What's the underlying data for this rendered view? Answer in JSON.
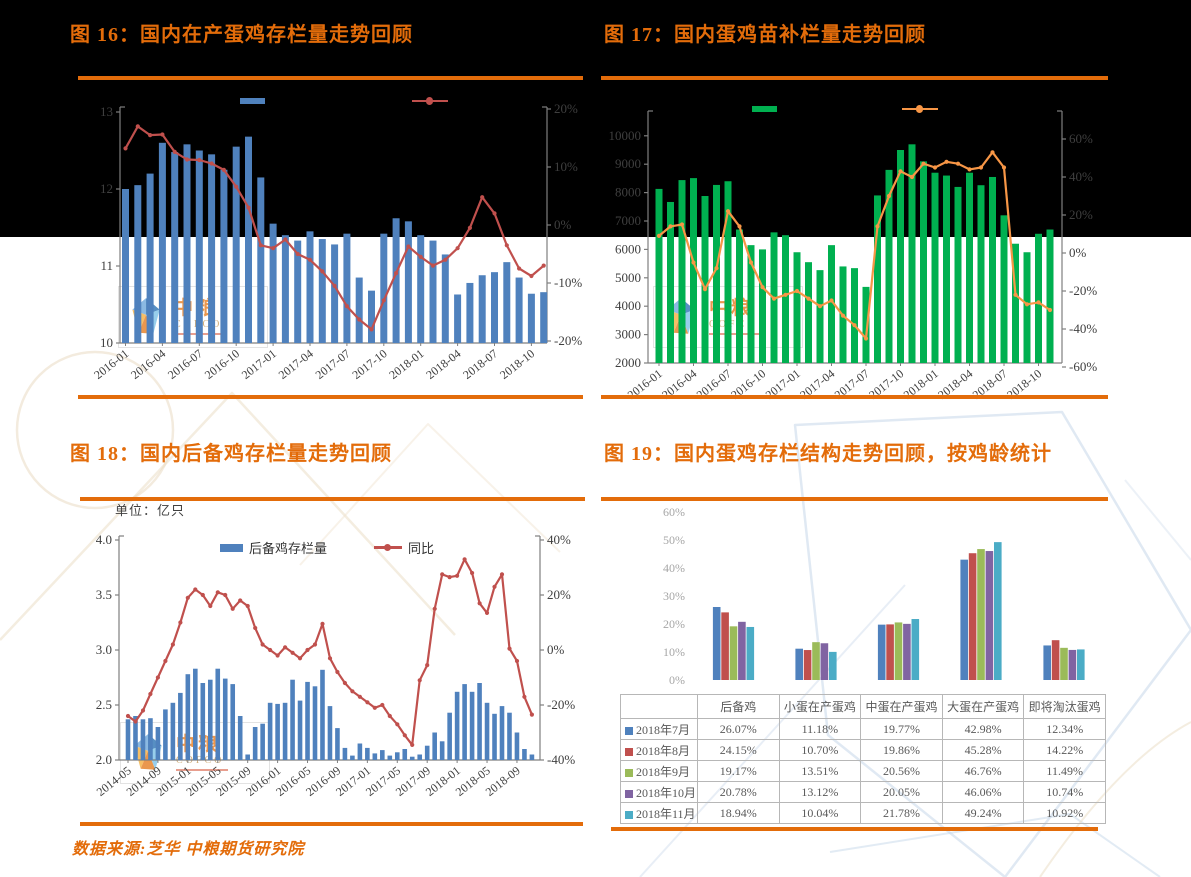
{
  "page": {
    "footer": "数据来源:芝华 中粮期货研究院",
    "accent_orange": "#E36C0A",
    "watermark": {
      "brand_cn": "中粮",
      "brand_en": "COFCO"
    }
  },
  "chart_data": [
    {
      "id": "fig16",
      "type": "bar+line",
      "title": "图 16：国内在产蛋鸡存栏量走势回顾",
      "bar_color": "#4F81BD",
      "line_color": "#C0504D",
      "x_labels": [
        "2016-01",
        "2016-04",
        "2016-07",
        "2016-10",
        "2017-01",
        "2017-04",
        "2017-07",
        "2017-10",
        "2018-01",
        "2018-04",
        "2018-07",
        "2018-10"
      ],
      "left_axis": {
        "ticks": [
          13,
          12,
          11,
          10
        ],
        "labels": [
          "13",
          "12",
          "11",
          "10"
        ]
      },
      "right_axis": {
        "ticks": [
          20,
          10,
          0,
          -10,
          -20
        ],
        "labels": [
          "20%",
          "10%",
          "0%",
          "-10%",
          "-20%"
        ]
      },
      "bars": [
        12.0,
        12.05,
        12.2,
        12.6,
        12.48,
        12.58,
        12.5,
        12.45,
        12.25,
        12.55,
        12.68,
        12.15,
        11.55,
        11.4,
        11.33,
        11.45,
        11.35,
        11.28,
        11.42,
        10.85,
        10.68,
        11.42,
        11.62,
        11.58,
        11.4,
        11.33,
        11.15,
        10.63,
        10.78,
        10.88,
        10.92,
        11.05,
        10.85,
        10.64,
        10.66
      ],
      "line": [
        13.2,
        17.0,
        15.5,
        15.6,
        12.6,
        11.3,
        11.2,
        10.6,
        9.5,
        6.6,
        3.0,
        -3.5,
        -4.0,
        -2.5,
        -5.0,
        -6.0,
        -8.0,
        -10.5,
        -14.0,
        -16.3,
        -18.0,
        -13.0,
        -8.3,
        -3.7,
        -5.5,
        -7.0,
        -6.0,
        -4.0,
        -0.5,
        4.8,
        2.0,
        -3.5,
        -7.5,
        -8.8,
        -7.0
      ]
    },
    {
      "id": "fig17",
      "type": "bar+line",
      "title": "图 17：国内蛋鸡苗补栏量走势回顾",
      "bar_color": "#00B050",
      "line_color": "#F79646",
      "x_labels": [
        "2016-01",
        "2016-04",
        "2016-07",
        "2016-10",
        "2017-01",
        "2017-04",
        "2017-07",
        "2017-10",
        "2018-01",
        "2018-04",
        "2018-07",
        "2018-10"
      ],
      "left_axis": {
        "ticks": [
          10000,
          9000,
          8000,
          7000,
          6000,
          5000,
          4000,
          3000,
          2000
        ],
        "labels": [
          "10000",
          "9000",
          "8000",
          "7000",
          "6000",
          "5000",
          "4000",
          "3000",
          "2000"
        ]
      },
      "right_axis": {
        "ticks": [
          60,
          40,
          20,
          0,
          -20,
          -40,
          -60
        ],
        "labels": [
          "60%",
          "40%",
          "20%",
          "0%",
          "-20%",
          "-40%",
          "-60%"
        ]
      },
      "bars": [
        8130,
        7670,
        8440,
        8510,
        7880,
        8270,
        8400,
        6700,
        6150,
        6000,
        6600,
        6500,
        5900,
        5550,
        5270,
        6150,
        5400,
        5340,
        4680,
        7900,
        8800,
        9500,
        9700,
        9100,
        8700,
        8600,
        8200,
        8700,
        8260,
        8550,
        7200,
        6200,
        5900,
        6550,
        6700
      ],
      "line": [
        9,
        14,
        15,
        -5,
        -19,
        -8,
        22,
        14,
        -5,
        -18,
        -24,
        -22,
        -20,
        -24,
        -28,
        -25,
        -33,
        -38,
        -45,
        14,
        30,
        43,
        40,
        47,
        45,
        48,
        47,
        44,
        45,
        53,
        45,
        -22,
        -27,
        -26,
        -30
      ]
    },
    {
      "id": "fig18",
      "type": "bar+line",
      "title": "图 18：国内后备鸡存栏量走势回顾",
      "unit": "单位：亿只",
      "bar_color": "#4F81BD",
      "line_color": "#C0504D",
      "legend": [
        {
          "label": "后备鸡存栏量",
          "color": "#4F81BD",
          "marker": "bar"
        },
        {
          "label": "同比",
          "color": "#C0504D",
          "marker": "line"
        }
      ],
      "x_labels": [
        "2014-05",
        "2014-09",
        "2015-01",
        "2015-05",
        "2015-09",
        "2016-01",
        "2016-05",
        "2016-09",
        "2017-01",
        "2017-05",
        "2017-09",
        "2018-01",
        "2018-05",
        "2018-09"
      ],
      "left_axis": {
        "ticks": [
          4.0,
          3.5,
          3.0,
          2.5,
          2.0
        ],
        "labels": [
          "4.0",
          "3.5",
          "3.0",
          "2.5",
          "2.0"
        ]
      },
      "right_axis": {
        "ticks": [
          40,
          20,
          0,
          -20,
          -40
        ],
        "labels": [
          "40%",
          "20%",
          "0%",
          "-20%",
          "-40%"
        ]
      },
      "bars": [
        2.37,
        2.4,
        2.37,
        2.38,
        2.3,
        2.46,
        2.52,
        2.61,
        2.78,
        2.83,
        2.7,
        2.73,
        2.83,
        2.74,
        2.69,
        2.4,
        2.05,
        2.3,
        2.33,
        2.52,
        2.51,
        2.52,
        2.73,
        2.54,
        2.71,
        2.67,
        2.82,
        2.49,
        2.29,
        2.11,
        2.04,
        2.15,
        2.11,
        2.06,
        2.09,
        2.04,
        2.07,
        2.1,
        2.03,
        2.05,
        2.13,
        2.25,
        2.17,
        2.43,
        2.62,
        2.69,
        2.62,
        2.7,
        2.52,
        2.42,
        2.49,
        2.43,
        2.25,
        2.1,
        2.05
      ],
      "line": [
        -24,
        -26,
        -22,
        -16,
        -10,
        -4,
        2,
        10,
        19,
        22,
        20,
        16,
        21,
        20,
        15,
        18,
        16,
        8,
        2,
        0,
        -2,
        1,
        -1,
        -3,
        0,
        2,
        9.5,
        -3,
        -8,
        -12,
        -15,
        -17,
        -19,
        -21,
        -20,
        -24,
        -27,
        -31,
        -34.5,
        -11,
        -5.5,
        15,
        27.5,
        26.5,
        27,
        33,
        28,
        17,
        13.5,
        23,
        27.5,
        0.5,
        -4,
        -17,
        -23.5
      ]
    },
    {
      "id": "fig19",
      "type": "grouped_bar+table",
      "title": "图 19：国内蛋鸡存栏结构走势回顾，按鸡龄统计",
      "y_labels": [
        "60%",
        "50%",
        "40%",
        "30%",
        "20%",
        "10%",
        "0%"
      ],
      "y_ticks": [
        60,
        50,
        40,
        30,
        20,
        10,
        0
      ],
      "categories": [
        "后备鸡",
        "小蛋在产蛋鸡",
        "中蛋在产蛋鸡",
        "大蛋在产蛋鸡",
        "即将淘汰蛋鸡"
      ],
      "series": [
        {
          "name": "2018年7月",
          "color": "#4F81BD",
          "values": [
            26.07,
            11.18,
            19.77,
            42.98,
            12.34
          ]
        },
        {
          "name": "2018年8月",
          "color": "#C0504D",
          "values": [
            24.15,
            10.7,
            19.86,
            45.28,
            14.22
          ]
        },
        {
          "name": "2018年9月",
          "color": "#9BBB59",
          "values": [
            19.17,
            13.51,
            20.56,
            46.76,
            11.49
          ]
        },
        {
          "name": "2018年10月",
          "color": "#8064A2",
          "values": [
            20.78,
            13.12,
            20.05,
            46.06,
            10.74
          ]
        },
        {
          "name": "2018年11月",
          "color": "#4BACC6",
          "values": [
            18.94,
            10.04,
            21.78,
            49.24,
            10.92
          ]
        }
      ]
    }
  ]
}
